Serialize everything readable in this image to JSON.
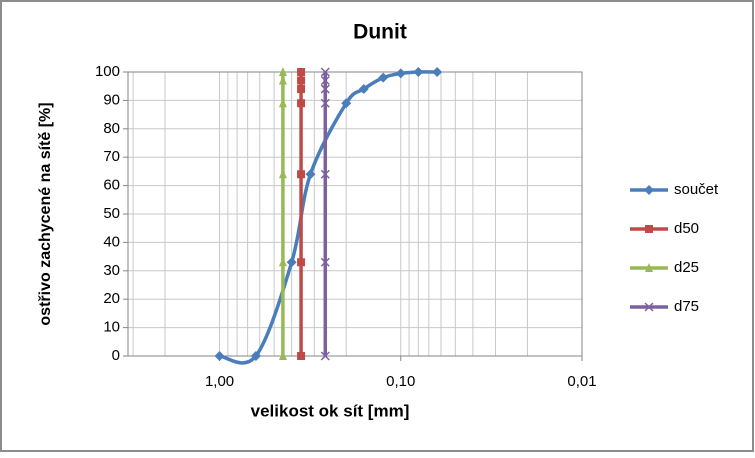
{
  "chart_data": {
    "type": "line",
    "title": "Dunit",
    "xlabel": "velikost ok sít [mm]",
    "ylabel": "ostřivo zachycené na sítě [%]",
    "xscale": "log",
    "xlim": [
      3.2,
      0.01
    ],
    "xticks": [
      {
        "value": 1,
        "label": "1,00"
      },
      {
        "value": 0.1,
        "label": "0,10"
      },
      {
        "value": 0.01,
        "label": "0,01"
      }
    ],
    "x_minor_grid": [
      3,
      2,
      0.9,
      0.8,
      0.7,
      0.6,
      0.5,
      0.4,
      0.3,
      0.2,
      0.09,
      0.08,
      0.07,
      0.06,
      0.05,
      0.04,
      0.03,
      0.02
    ],
    "ylim": [
      0,
      100
    ],
    "yticks": [
      0,
      10,
      20,
      30,
      40,
      50,
      60,
      70,
      80,
      90,
      100
    ],
    "grid": true,
    "legend": "right",
    "series": [
      {
        "name": "součet",
        "color": "#4a7ebb",
        "marker": "diamond",
        "smooth": true,
        "x": [
          1.0,
          0.63,
          0.4,
          0.315,
          0.2,
          0.16,
          0.125,
          0.1,
          0.08,
          0.063
        ],
        "values": [
          0,
          0,
          33,
          64,
          89,
          94,
          98,
          99.5,
          100,
          100
        ]
      },
      {
        "name": "d50",
        "color": "#be4b48",
        "marker": "square",
        "smooth": false,
        "x": [
          0.355,
          0.355,
          0.355,
          0.355,
          0.355,
          0.355,
          0.355
        ],
        "values": [
          0,
          33,
          64,
          89,
          94,
          97,
          100
        ]
      },
      {
        "name": "d25",
        "color": "#98b954",
        "marker": "triangle",
        "smooth": false,
        "x": [
          0.447,
          0.447,
          0.447,
          0.447,
          0.447,
          0.447
        ],
        "values": [
          0,
          33,
          64,
          89,
          97,
          100
        ]
      },
      {
        "name": "d75",
        "color": "#7d60a0",
        "marker": "x",
        "smooth": false,
        "x": [
          0.261,
          0.261,
          0.261,
          0.261,
          0.261,
          0.261,
          0.261
        ],
        "values": [
          0,
          33,
          64,
          89,
          94,
          97,
          100
        ]
      }
    ]
  }
}
